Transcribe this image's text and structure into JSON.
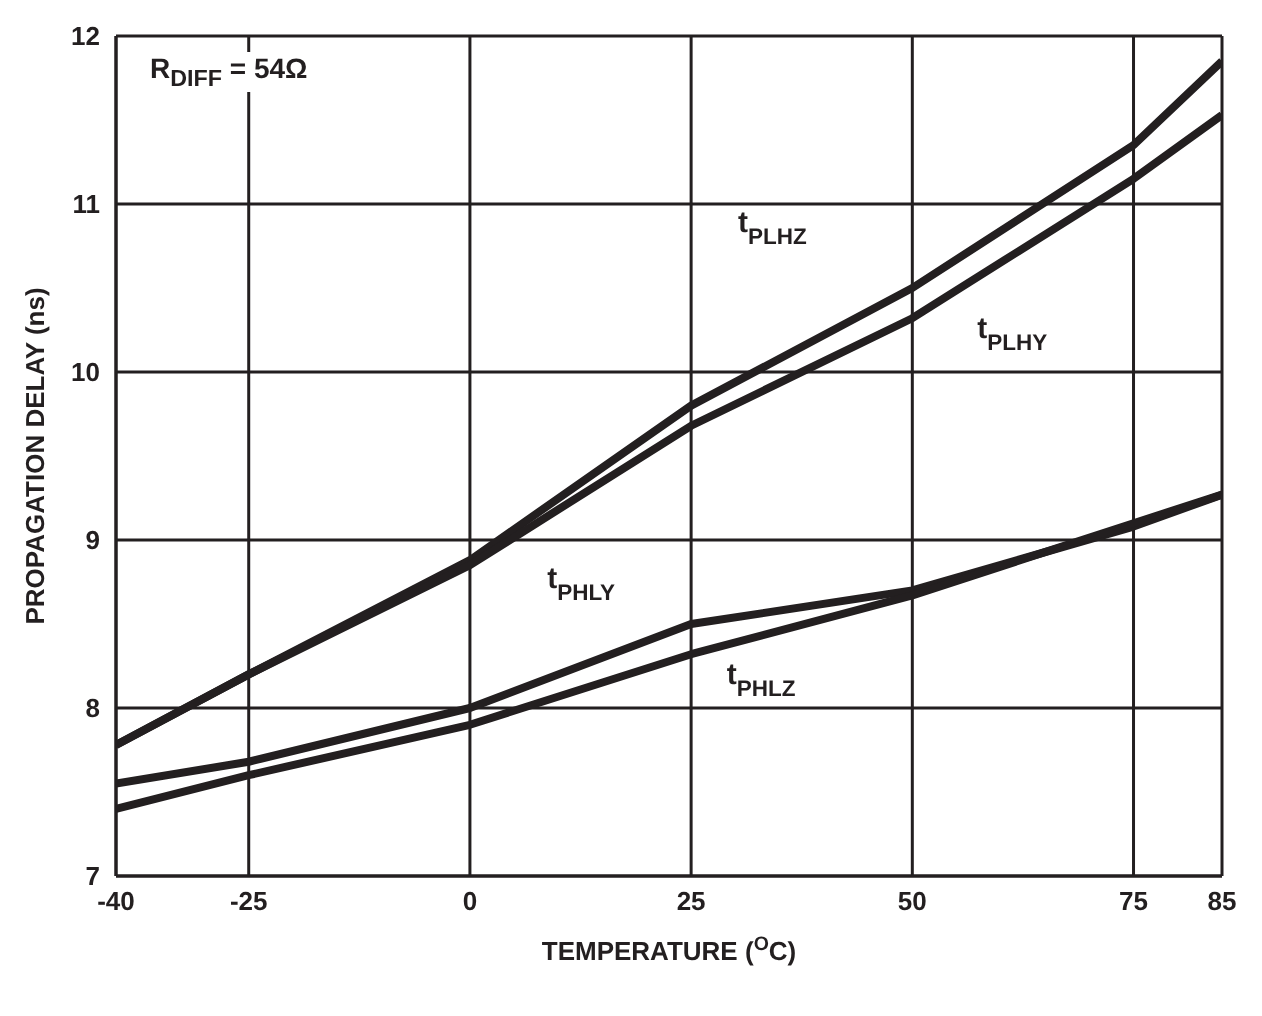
{
  "chart_data": {
    "type": "line",
    "xlabel": "TEMPERATURE ($^{O}$C)",
    "ylabel": "PROPAGATION DELAY (ns)",
    "annotations": [
      "R$_{DIFF}$ = 54Ω"
    ],
    "x": [
      -40,
      -25,
      0,
      25,
      50,
      75,
      85
    ],
    "series": [
      {
        "name": "t$_{PLHZ}$",
        "color": "#231f20",
        "values": [
          7.78,
          8.2,
          8.88,
          9.8,
          10.5,
          11.35,
          11.85
        ]
      },
      {
        "name": "t$_{PLHY}$",
        "color": "#231f20",
        "values": [
          7.78,
          8.2,
          8.85,
          9.68,
          10.32,
          11.15,
          11.53
        ]
      },
      {
        "name": "t$_{PHLY}$",
        "color": "#231f20",
        "values": [
          7.55,
          7.68,
          8.0,
          8.5,
          8.7,
          9.08,
          9.27
        ]
      },
      {
        "name": "t$_{PHLZ}$",
        "color": "#231f20",
        "values": [
          7.4,
          7.6,
          7.9,
          8.32,
          8.67,
          9.1,
          9.27
        ]
      }
    ],
    "xlim": [
      -40,
      85
    ],
    "xticks": [
      -40,
      -25,
      0,
      25,
      50,
      75,
      85
    ],
    "ylim": [
      7,
      12
    ],
    "yticks": [
      7,
      8,
      9,
      10,
      11,
      12
    ],
    "grid": true,
    "legend": false,
    "marker": "none",
    "line_style": "solid"
  }
}
